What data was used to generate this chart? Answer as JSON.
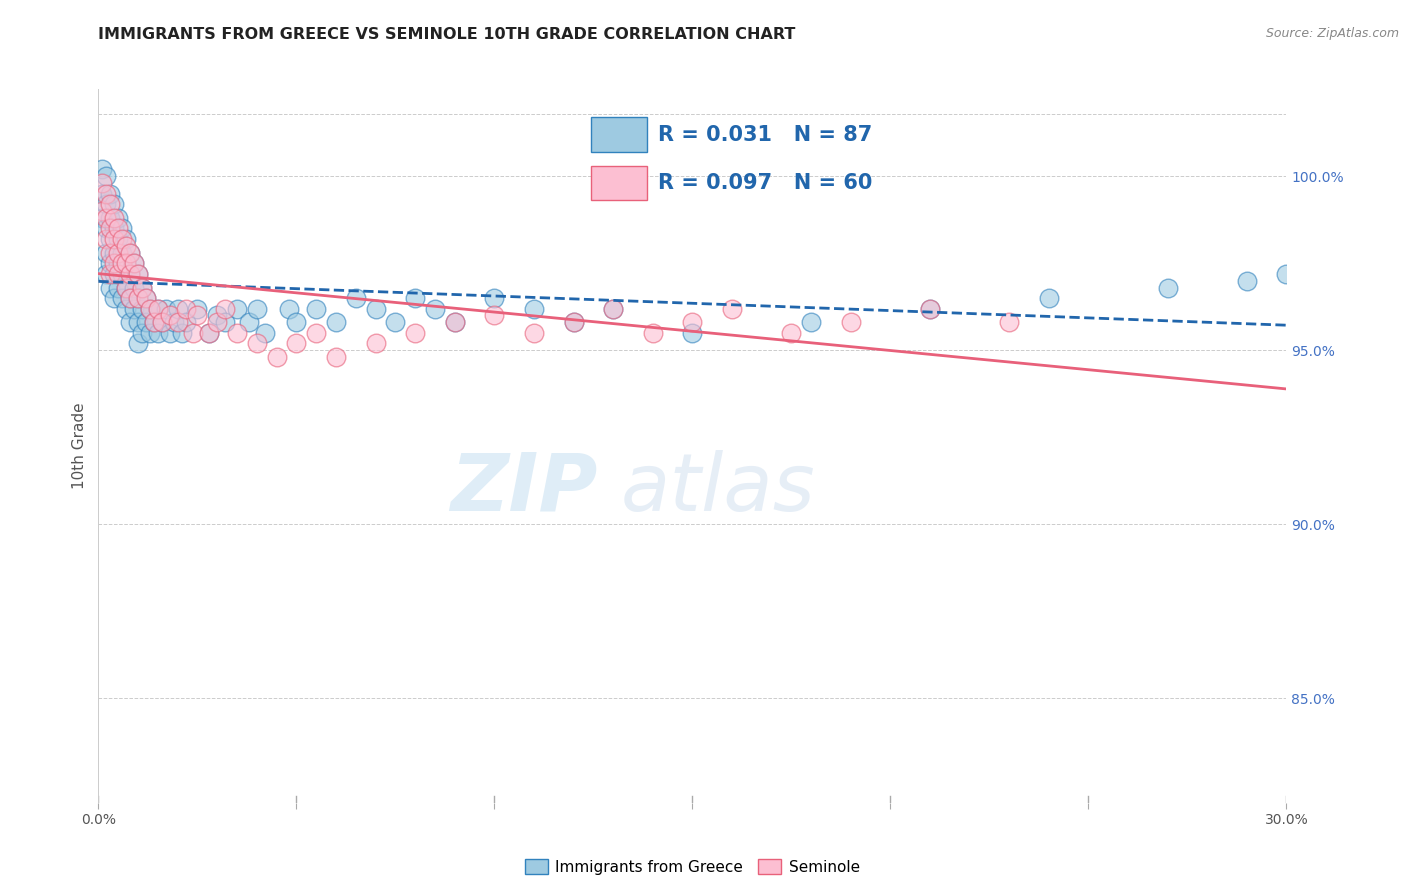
{
  "title": "IMMIGRANTS FROM GREECE VS SEMINOLE 10TH GRADE CORRELATION CHART",
  "source": "Source: ZipAtlas.com",
  "ylabel": "10th Grade",
  "right_yticks": [
    85.0,
    90.0,
    95.0,
    100.0
  ],
  "right_yticklabels": [
    "85.0%",
    "90.0%",
    "95.0%",
    "100.0%"
  ],
  "legend_label1": "Immigrants from Greece",
  "legend_label2": "Seminole",
  "blue_color": "#9ecae1",
  "pink_color": "#fcbfd2",
  "blue_edge": "#3182bd",
  "pink_edge": "#e8617a",
  "trend_blue_color": "#2166ac",
  "trend_pink_color": "#e8607a",
  "watermark_color": "#cce5f5",
  "watermark": "ZIPatlas",
  "xmin": 0.0,
  "xmax": 0.3,
  "ymin": 82.0,
  "ymax": 102.5,
  "R_blue": 0.031,
  "N_blue": 87,
  "R_pink": 0.097,
  "N_pink": 60,
  "blue_x": [
    0.001,
    0.001,
    0.001,
    0.002,
    0.002,
    0.002,
    0.002,
    0.002,
    0.003,
    0.003,
    0.003,
    0.003,
    0.003,
    0.004,
    0.004,
    0.004,
    0.004,
    0.004,
    0.005,
    0.005,
    0.005,
    0.005,
    0.006,
    0.006,
    0.006,
    0.006,
    0.007,
    0.007,
    0.007,
    0.007,
    0.008,
    0.008,
    0.008,
    0.008,
    0.009,
    0.009,
    0.009,
    0.01,
    0.01,
    0.01,
    0.01,
    0.011,
    0.011,
    0.011,
    0.012,
    0.012,
    0.013,
    0.013,
    0.014,
    0.015,
    0.015,
    0.016,
    0.017,
    0.018,
    0.019,
    0.02,
    0.021,
    0.022,
    0.025,
    0.028,
    0.03,
    0.032,
    0.035,
    0.038,
    0.04,
    0.042,
    0.048,
    0.05,
    0.055,
    0.06,
    0.065,
    0.07,
    0.075,
    0.08,
    0.085,
    0.09,
    0.1,
    0.11,
    0.12,
    0.13,
    0.15,
    0.18,
    0.21,
    0.24,
    0.27,
    0.29,
    0.3
  ],
  "blue_y": [
    100.2,
    99.5,
    98.8,
    100.0,
    99.2,
    98.5,
    97.8,
    97.2,
    99.5,
    98.8,
    98.2,
    97.5,
    96.8,
    99.2,
    98.5,
    97.8,
    97.2,
    96.5,
    98.8,
    98.2,
    97.5,
    96.8,
    98.5,
    97.8,
    97.2,
    96.5,
    98.2,
    97.5,
    96.8,
    96.2,
    97.8,
    97.2,
    96.5,
    95.8,
    97.5,
    96.8,
    96.2,
    97.2,
    96.5,
    95.8,
    95.2,
    96.8,
    96.2,
    95.5,
    96.5,
    95.8,
    96.2,
    95.5,
    95.8,
    96.2,
    95.5,
    95.8,
    96.2,
    95.5,
    95.8,
    96.2,
    95.5,
    95.8,
    96.2,
    95.5,
    96.0,
    95.8,
    96.2,
    95.8,
    96.2,
    95.5,
    96.2,
    95.8,
    96.2,
    95.8,
    96.5,
    96.2,
    95.8,
    96.5,
    96.2,
    95.8,
    96.5,
    96.2,
    95.8,
    96.2,
    95.5,
    95.8,
    96.2,
    96.5,
    96.8,
    97.0,
    97.2
  ],
  "pink_x": [
    0.001,
    0.001,
    0.002,
    0.002,
    0.002,
    0.003,
    0.003,
    0.003,
    0.003,
    0.004,
    0.004,
    0.004,
    0.005,
    0.005,
    0.005,
    0.006,
    0.006,
    0.007,
    0.007,
    0.007,
    0.008,
    0.008,
    0.008,
    0.009,
    0.01,
    0.01,
    0.011,
    0.012,
    0.013,
    0.014,
    0.015,
    0.016,
    0.018,
    0.02,
    0.022,
    0.024,
    0.025,
    0.028,
    0.03,
    0.032,
    0.035,
    0.04,
    0.045,
    0.05,
    0.055,
    0.06,
    0.07,
    0.08,
    0.09,
    0.1,
    0.11,
    0.12,
    0.13,
    0.14,
    0.15,
    0.16,
    0.175,
    0.19,
    0.21,
    0.23
  ],
  "pink_y": [
    99.8,
    99.0,
    99.5,
    98.8,
    98.2,
    99.2,
    98.5,
    97.8,
    97.2,
    98.8,
    98.2,
    97.5,
    98.5,
    97.8,
    97.2,
    98.2,
    97.5,
    98.0,
    97.5,
    96.8,
    97.8,
    97.2,
    96.5,
    97.5,
    97.2,
    96.5,
    96.8,
    96.5,
    96.2,
    95.8,
    96.2,
    95.8,
    96.0,
    95.8,
    96.2,
    95.5,
    96.0,
    95.5,
    95.8,
    96.2,
    95.5,
    95.2,
    94.8,
    95.2,
    95.5,
    94.8,
    95.2,
    95.5,
    95.8,
    96.0,
    95.5,
    95.8,
    96.2,
    95.5,
    95.8,
    96.2,
    95.5,
    95.8,
    96.2,
    95.8
  ]
}
